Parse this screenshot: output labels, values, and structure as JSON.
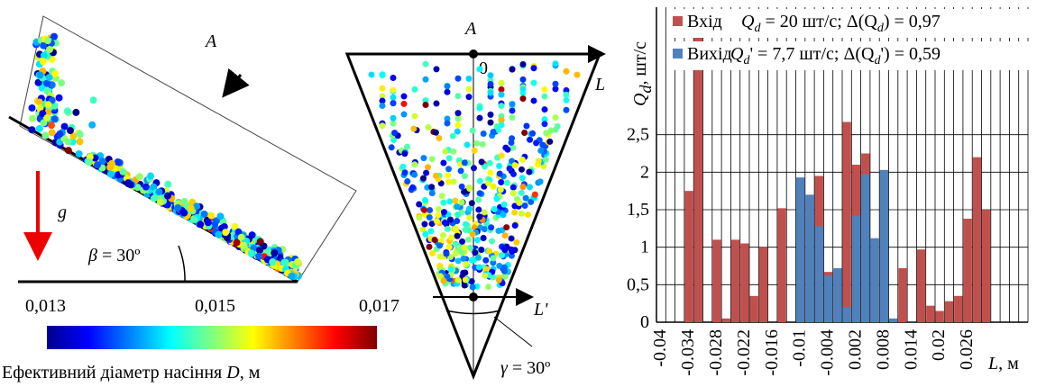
{
  "left_panel": {
    "label_a": "A",
    "label_g": "g",
    "angle_label": [
      "β",
      " = 30º"
    ],
    "colorbar_ticks": [
      "0,013",
      "0,015",
      "0,017"
    ],
    "colorbar_caption": [
      "Ефективний діаметр насіння ",
      "D",
      ", м"
    ]
  },
  "middle_panel": {
    "label_a": "A",
    "label_top_zero": "0",
    "label_l": "L",
    "label_bottom_zero": "0",
    "label_l_prime": "L'",
    "angle_label": [
      "γ",
      " = 30º"
    ]
  },
  "chart_data": {
    "type": "bar",
    "ylabel_parts": [
      "Q",
      "d",
      ", шт/с"
    ],
    "xlabel_parts": [
      "L",
      ", м"
    ],
    "annotations": [
      [
        "Q",
        "d",
        " = 20 шт/с; Δ(Q",
        "d",
        ") = 0,97"
      ],
      [
        "Q",
        "d",
        "' = 7,7 шт/с; Δ(Q",
        "d",
        "') = 0,59"
      ]
    ],
    "categories": [
      "-0.04",
      null,
      null,
      "-0.034",
      null,
      null,
      "-0.028",
      null,
      null,
      "-0.022",
      null,
      null,
      "-0.016",
      null,
      null,
      "-0.01",
      null,
      null,
      "-0.004",
      null,
      null,
      "0.002",
      null,
      null,
      "0.008",
      null,
      null,
      "0.014",
      null,
      null,
      "0.02",
      null,
      null,
      "0.026",
      null,
      null,
      null,
      null,
      null,
      null
    ],
    "series": [
      {
        "name": "Вхід",
        "color": "#c0504d",
        "values": [
          0,
          0,
          0,
          1.75,
          3.85,
          0,
          1.1,
          0.05,
          1.1,
          1.05,
          0.35,
          1.0,
          0,
          1.52,
          0,
          1.9,
          1.65,
          1.95,
          0.67,
          0.7,
          2.67,
          2.1,
          2.25,
          1.1,
          2.0,
          0,
          0.72,
          0,
          0.97,
          0.22,
          0.15,
          0.28,
          0.35,
          1.38,
          2.2,
          1.5,
          0,
          0,
          0,
          0
        ]
      },
      {
        "name": "Вихід",
        "color": "#4f81bd",
        "values": [
          0,
          0,
          0,
          0,
          0,
          0,
          0,
          0,
          0,
          0,
          0,
          0,
          0,
          0,
          0,
          1.93,
          1.7,
          1.28,
          0.62,
          0.72,
          0.2,
          1.42,
          1.97,
          1.12,
          2.03,
          0.05,
          0,
          0,
          0,
          0,
          0,
          0,
          0,
          0,
          0,
          0,
          0,
          0,
          0,
          0
        ]
      }
    ],
    "ylim": [
      0,
      4.2
    ],
    "yticks": [
      0,
      {
        "value": 0.5,
        "label": "0,5"
      },
      1,
      {
        "value": 1.5,
        "label": "1,5"
      },
      2,
      {
        "value": 2.5,
        "label": "2,5"
      }
    ],
    "grid": true
  }
}
